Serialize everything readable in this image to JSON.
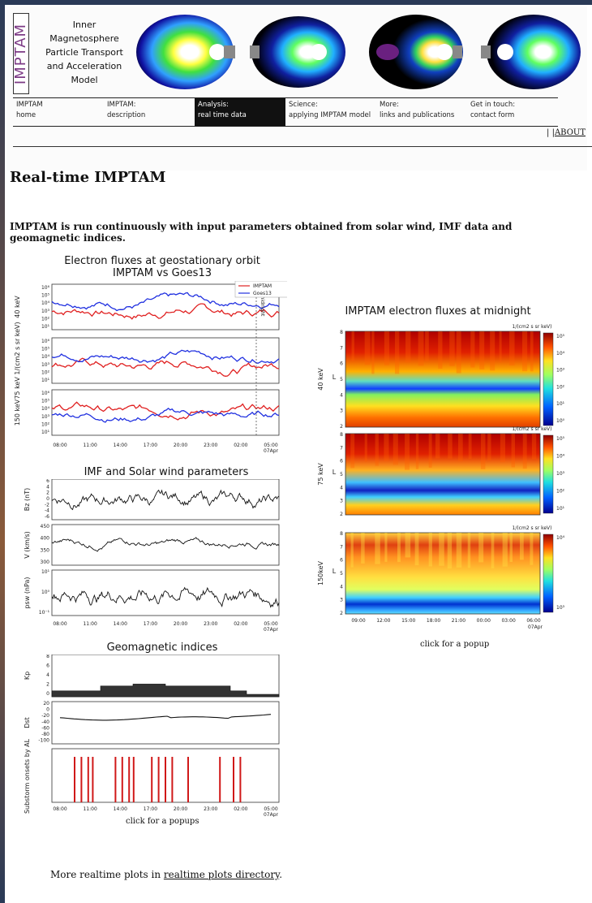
{
  "header": {
    "logo_text": "IMPTAM",
    "full_name": [
      "Inner",
      "Magnetosphere",
      "Particle Transport",
      "and Acceleration",
      "Model"
    ]
  },
  "nav": [
    {
      "line1": "IMPTAM",
      "line2": "home"
    },
    {
      "line1": "IMPTAM:",
      "line2": "description"
    },
    {
      "line1": "Analysis:",
      "line2": "real time data"
    },
    {
      "line1": "Science:",
      "line2": "applying IMPTAM model"
    },
    {
      "line1": "More:",
      "line2": "links and publications"
    },
    {
      "line1": "Get in touch:",
      "line2": "contact form"
    }
  ],
  "about_label": "ABOUT",
  "page_title": "Real-time IMPTAM",
  "intro_text": "IMPTAM is run continuously with input parameters obtained from solar wind, IMF data and geomagnetic indices.",
  "electron_panel": {
    "title_line1": "Electron fluxes at geostationary orbit",
    "title_line2": "IMPTAM vs Goes13",
    "legend": [
      "IMPTAM",
      "Goes13"
    ],
    "midnight_label": "midnight",
    "row_labels": [
      "40 keV",
      "75 keV 1/(cm2 s sr keV)",
      "150 keV"
    ],
    "yticks": [
      "10⁶",
      "10⁵",
      "10⁴",
      "10³",
      "10²",
      "10¹"
    ]
  },
  "imf_panel": {
    "title": "IMF and Solar wind parameters",
    "row_labels": [
      "Bz (nT)",
      "V (km/s)",
      "psw (nPa)"
    ],
    "bz_ticks": [
      "6",
      "4",
      "2",
      "0",
      "-2",
      "-4",
      "-6"
    ],
    "v_ticks": [
      "450",
      "400",
      "350",
      "300"
    ],
    "psw_ticks": [
      "10¹",
      "10⁰",
      "10⁻¹"
    ]
  },
  "geo_panel": {
    "title": "Geomagnetic indices",
    "row_labels": [
      "Kp",
      "Dst",
      "Substorm onsets by AL"
    ],
    "kp_ticks": [
      "8",
      "6",
      "4",
      "2",
      "0"
    ],
    "dst_ticks": [
      "20",
      "0",
      "-20",
      "-40",
      "-60",
      "-80",
      "-100"
    ],
    "caption": "click for a popups"
  },
  "time_ticks": [
    "08:00",
    "11:00",
    "14:00",
    "17:00",
    "20:00",
    "23:00",
    "02:00",
    "05:00"
  ],
  "date_label": "07Apr",
  "midnight_panel": {
    "title": "IMPTAM electron fluxes at midnight",
    "unit": "1/(cm2 s sr keV)",
    "row_labels": [
      "40 keV",
      "75 keV",
      "150keV"
    ],
    "axis_letter": "L",
    "l_ticks": [
      "8",
      "7",
      "6",
      "5",
      "4",
      "3",
      "2"
    ],
    "time_ticks": [
      "09:00",
      "12:00",
      "15:00",
      "18:00",
      "21:00",
      "00:00",
      "03:00",
      "06:00"
    ],
    "date_label": "07Apr",
    "cbar_ticks_1": [
      "10⁵",
      "10⁴",
      "10³",
      "10²",
      "10¹",
      "10⁰"
    ],
    "cbar_ticks_2": [
      "10⁵",
      "10⁴",
      "10³",
      "10²",
      "10¹"
    ],
    "cbar_ticks_3": [
      "10⁴",
      "10³"
    ],
    "caption": "click for a popup"
  },
  "footer": {
    "prefix": "More realtime plots in ",
    "link": "realtime plots directory",
    "suffix": "."
  },
  "colors": {
    "imptam": "#e02020",
    "goes13": "#2030e0",
    "nav_active": "#111111"
  }
}
